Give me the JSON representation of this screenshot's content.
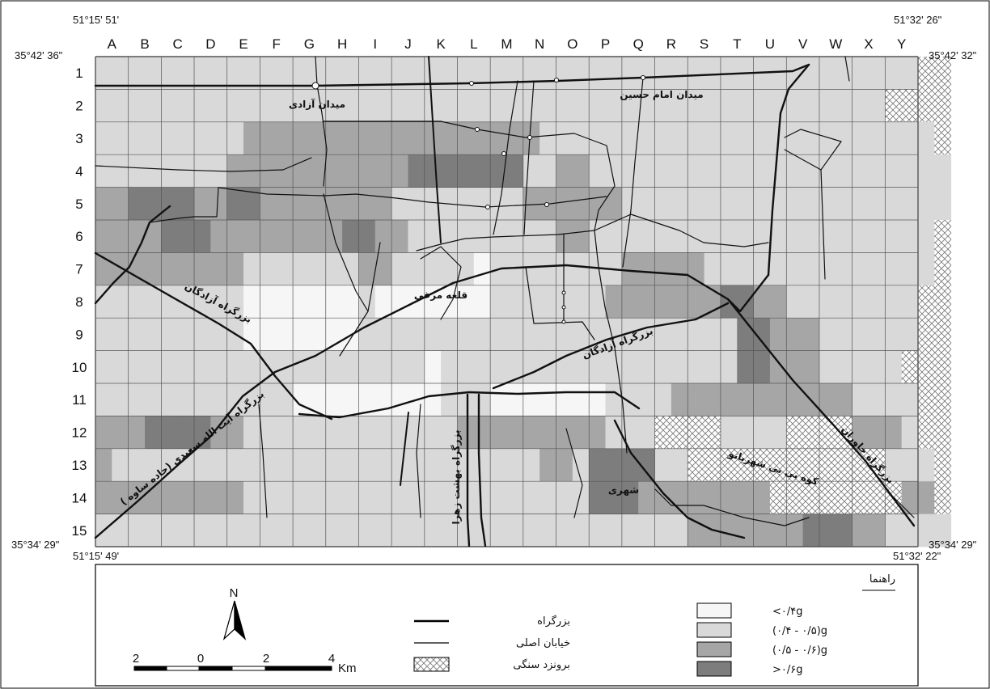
{
  "coordinates": {
    "top_left_lon": "51°15' 51'",
    "top_left_lat": "35°42' 36\"",
    "top_right_lon": "51°32' 26\"",
    "top_right_lat": "35°42' 32\"",
    "bottom_left_lat": "35°34' 29\"",
    "bottom_left_lon": "51°15' 49'",
    "bottom_right_lat": "35°34' 29\"",
    "bottom_right_lon": "51°32' 22\""
  },
  "grid": {
    "columns": [
      "A",
      "B",
      "C",
      "D",
      "E",
      "F",
      "G",
      "H",
      "I",
      "J",
      "K",
      "L",
      "M",
      "N",
      "O",
      "P",
      "Q",
      "R",
      "S",
      "T",
      "U",
      "V",
      "W",
      "X",
      "Y"
    ],
    "rows": [
      "1",
      "2",
      "3",
      "4",
      "5",
      "6",
      "7",
      "8",
      "9",
      "10",
      "11",
      "12",
      "13",
      "14",
      "15"
    ],
    "cells": [
      "LLLLLLLLLLLLLLLLLLLLLLLLLLLLLLLLLLLLLLLLLLLLLLLLLLXX",
      "LLLLLLLLLLLLLLLLLLLLLLLLLLLLLLLLLLLLLLLLLLLLLLLLXXXX",
      "LLLLLLLLLMMMMMMMMMMMMMMMMMMLLLLLLLLLLLLLLLLLLLLLLLLX",
      "LLLLLLLLMMMMMMMMMMMDDDDDDDLLMMLLLLLLLLLLLLLLLLLLLLLL",
      "MMDDDDMMDDMMMMMMMMLLLLLLLLMMMMMMLLLLLLLLLLLLLLLLLLLL",
      "MMMMDDDMMMMMMMMDDMMLLLLLLLLLMMLLLLLLLLLLLLLLLLLLLLLX",
      "MMMMMMMMMLLLLLLLMMLLLLLWLLLLLLLLMMMMMLLLLLLLLLLLLLLX",
      "LLLLLLLLLWWWWWWWLWWWWWWWLLLLLLLMMMMMMMDDMMLLLLLLLLXX",
      "LLLLLLLLLWWWWWWWLLLLLLLLLLLLLLLLLLLLLLLDDMMMLLLLLLXX",
      "LLLLLLLLLLLLLLLLLLLLWLLLLLLLLLLLLLLLLLLDDMMMLLLLLXXX",
      "LLLLLLLLLLLLWWWWWWWWWLLLWWWWWWWLLLLMMMMMMMMMMMLLLLXX",
      "MMMDDDDMMLLLLLLLLLLLLLMMMMMMMMMLLLXXXXLLLLXXXXMMMLXX",
      "MLLLLLLLLLLLLLLLLLLLLLLLLLLMMLDDDDLLXXXXXXXXXXXXLLLX",
      "MMMMMMMMMLLLLLLLLLLLLLLLLLLLLLDDDMMMMMMMMXXXXXXXXMMX",
      "LLLLLLLLLLLLLLLLLLLLLLLLLLLLLLLLLLLLMMMMMMMDDDMMLLLL"
    ]
  },
  "places": {
    "azadi_square": "میدان آزادی",
    "imam_hossein_square": "میدان امام حسین",
    "qaleh_morghi": "قلعه مرغی",
    "azadegan_hw_west": "بزرگراه آزادگان",
    "azadegan_hw_east": "بزرگراه آزادگان",
    "saeedi_hw": "بزرگراه آیت الله سعیدی (جاده ساوه )",
    "behesht_zahra_hw": "بزرگراه بهشت زهرا",
    "khavaran_hw": "بزرگراه خاوران",
    "bibi_shahrbanu": "کوه بی بی شهربانو",
    "shahr_rey": "شهری"
  },
  "legend": {
    "title": "راهنما",
    "highway": "بزرگراه",
    "main_street": "خیابان اصلی",
    "rock_outcrop": "برونزد سنگی",
    "classes": [
      "<۰/۴g",
      "(۰/۴ - ۰/۵)g",
      "(۰/۵ - ۰/۶)g",
      ">۰/۶g"
    ],
    "class_colors": [
      "#f6f6f6",
      "#d9d9d9",
      "#a6a6a6",
      "#7d7d7d"
    ]
  },
  "north_arrow": {
    "label": "N"
  },
  "scale_bar": {
    "labels": [
      "2",
      "0",
      "2",
      "4"
    ],
    "unit": "Km"
  },
  "colors": {
    "very_light": "#f6f6f6",
    "light": "#d9d9d9",
    "medium": "#a6a6a6",
    "dark": "#7d7d7d"
  }
}
